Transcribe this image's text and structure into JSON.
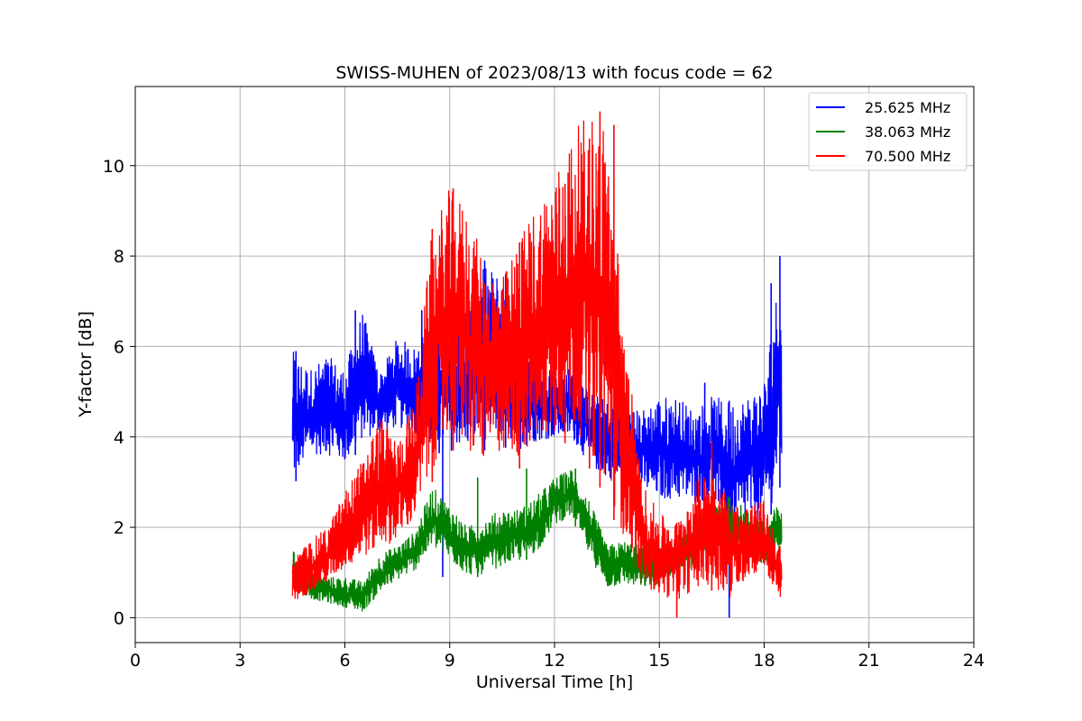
{
  "chart_data": {
    "type": "line",
    "title": "SWISS-MUHEN of 2023/08/13 with focus code = 62",
    "xlabel": "Universal Time [h]",
    "ylabel": "Y-factor [dB]",
    "xlim": [
      0,
      24
    ],
    "ylim": [
      -0.55,
      11.75
    ],
    "xticks": [
      0,
      3,
      6,
      9,
      12,
      15,
      18,
      21,
      24
    ],
    "yticks": [
      0,
      2,
      4,
      6,
      8,
      10
    ],
    "grid": true,
    "legend_position": "top-right",
    "series": [
      {
        "name": "25.625 MHz",
        "color": "#0000ff",
        "envelope": {
          "x": [
            4.5,
            5.0,
            5.5,
            6.0,
            6.5,
            7.0,
            7.5,
            8.0,
            8.5,
            9.0,
            9.5,
            10.0,
            10.5,
            11.0,
            11.5,
            12.0,
            12.5,
            13.0,
            13.5,
            14.0,
            14.5,
            15.0,
            15.5,
            16.0,
            16.5,
            17.0,
            17.5,
            18.0,
            18.5
          ],
          "low": [
            2.9,
            3.5,
            3.5,
            3.3,
            3.8,
            4.0,
            4.1,
            4.0,
            3.6,
            3.7,
            3.6,
            3.7,
            3.8,
            3.6,
            3.8,
            3.9,
            3.9,
            3.3,
            3.0,
            3.0,
            2.7,
            2.5,
            2.5,
            2.4,
            2.5,
            1.5,
            2.0,
            1.8,
            3.0
          ],
          "high": [
            5.9,
            5.5,
            5.8,
            5.5,
            6.8,
            5.4,
            6.2,
            6.0,
            6.6,
            6.3,
            6.8,
            7.8,
            7.6,
            6.3,
            6.0,
            5.6,
            5.5,
            5.0,
            4.8,
            4.6,
            4.6,
            4.9,
            4.9,
            4.6,
            4.9,
            4.8,
            4.9,
            5.3,
            8.0
          ]
        },
        "spikes": [
          [
            4.6,
            5.9
          ],
          [
            6.3,
            6.8
          ],
          [
            8.2,
            6.8
          ],
          [
            8.7,
            6.7
          ],
          [
            9.05,
            6.3
          ],
          [
            10.0,
            7.9
          ],
          [
            10.6,
            7.6
          ],
          [
            16.3,
            5.2
          ],
          [
            18.2,
            7.4
          ],
          [
            18.45,
            8.0
          ],
          [
            8.8,
            0.9
          ],
          [
            17.0,
            0.0
          ]
        ]
      },
      {
        "name": "38.063 MHz",
        "color": "#008000",
        "envelope": {
          "x": [
            4.5,
            5.0,
            5.5,
            6.0,
            6.5,
            7.0,
            7.5,
            8.0,
            8.5,
            9.0,
            9.5,
            10.0,
            10.5,
            11.0,
            11.5,
            12.0,
            12.5,
            13.0,
            13.5,
            14.0,
            14.5,
            15.0,
            15.5,
            16.0,
            16.5,
            17.0,
            17.5,
            18.0,
            18.5
          ],
          "low": [
            0.6,
            0.4,
            0.3,
            0.2,
            0.1,
            0.5,
            0.8,
            1.0,
            1.5,
            1.2,
            0.9,
            0.9,
            1.1,
            1.2,
            1.4,
            2.0,
            2.2,
            1.3,
            0.6,
            0.7,
            0.6,
            0.7,
            1.0,
            1.0,
            1.2,
            1.3,
            1.4,
            1.1,
            1.5
          ],
          "high": [
            1.5,
            1.0,
            0.9,
            0.9,
            0.8,
            1.4,
            1.6,
            1.9,
            2.9,
            2.5,
            2.0,
            2.2,
            2.4,
            2.4,
            2.7,
            3.1,
            3.3,
            2.6,
            1.6,
            1.7,
            1.6,
            1.5,
            1.8,
            1.9,
            2.7,
            2.7,
            2.4,
            2.1,
            2.6
          ]
        },
        "spikes": [
          [
            9.8,
            3.1
          ],
          [
            11.2,
            3.3
          ],
          [
            12.6,
            3.3
          ]
        ]
      },
      {
        "name": "70.500 MHz",
        "color": "#ff0000",
        "envelope": {
          "x": [
            4.5,
            5.0,
            5.5,
            6.0,
            6.5,
            7.0,
            7.5,
            8.0,
            8.5,
            9.0,
            9.5,
            10.0,
            10.5,
            11.0,
            11.5,
            12.0,
            12.5,
            13.0,
            13.5,
            14.0,
            14.5,
            15.0,
            15.5,
            16.0,
            16.5,
            17.0,
            17.5,
            18.0,
            18.5
          ],
          "low": [
            0.3,
            0.5,
            0.7,
            1.0,
            1.2,
            1.4,
            1.6,
            2.0,
            3.0,
            3.8,
            3.3,
            3.2,
            3.5,
            3.3,
            3.6,
            3.8,
            3.9,
            3.3,
            2.6,
            1.5,
            0.6,
            0.4,
            0.3,
            0.5,
            0.6,
            0.3,
            0.8,
            1.0,
            0.2
          ],
          "high": [
            1.3,
            1.7,
            2.0,
            2.8,
            3.5,
            4.5,
            3.9,
            4.8,
            8.6,
            9.5,
            9.1,
            7.8,
            7.5,
            8.4,
            9.2,
            9.8,
            10.7,
            11.2,
            10.9,
            6.5,
            3.0,
            2.3,
            2.1,
            3.0,
            3.5,
            2.6,
            2.5,
            2.6,
            1.5
          ]
        },
        "spikes": [
          [
            8.5,
            8.6
          ],
          [
            9.1,
            9.5
          ],
          [
            11.0,
            8.3
          ],
          [
            12.3,
            9.6
          ],
          [
            13.0,
            10.6
          ],
          [
            13.3,
            11.2
          ],
          [
            13.7,
            10.9
          ],
          [
            15.5,
            0.0
          ],
          [
            16.5,
            3.9
          ]
        ]
      }
    ]
  }
}
